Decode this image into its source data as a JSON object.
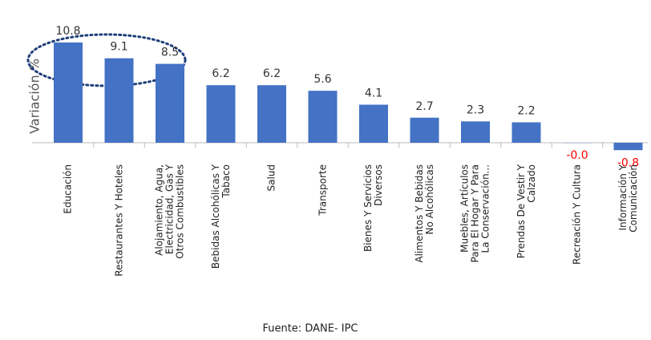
{
  "chart_data": {
    "type": "bar",
    "y_label": "Variación %",
    "source": "Fuente: DANE- IPC",
    "color": "#4472c4",
    "negative_label_color": "#ff0000",
    "categories": [
      "Educación",
      "Restaurantes Y Hoteles",
      "Alojamiento, Agua,\nElectricidad, Gas Y\nOtros Combustibles",
      "Bebidas Alcohólicas Y\nTabaco",
      "Salud",
      "Transporte",
      "Bienes Y Servicios\nDiversos",
      "Alimentos Y Bebidas\nNo Alcohólicas",
      "Muebles, Artículos\nPara El Hogar Y Para\nLa Conservación...",
      "Prendas De Vestir Y\nCalzado",
      "Recreación Y Cultura",
      "Información Y\nComunicación"
    ],
    "values": [
      10.8,
      9.1,
      8.5,
      6.2,
      6.2,
      5.6,
      4.1,
      2.7,
      2.3,
      2.2,
      -0.02,
      -0.8
    ],
    "value_labels": [
      "10.8",
      "9.1",
      "8.5",
      "6.2",
      "6.2",
      "5.6",
      "4.1",
      "2.7",
      "2.3",
      "2.2",
      "-0.0",
      "-0.8"
    ]
  }
}
